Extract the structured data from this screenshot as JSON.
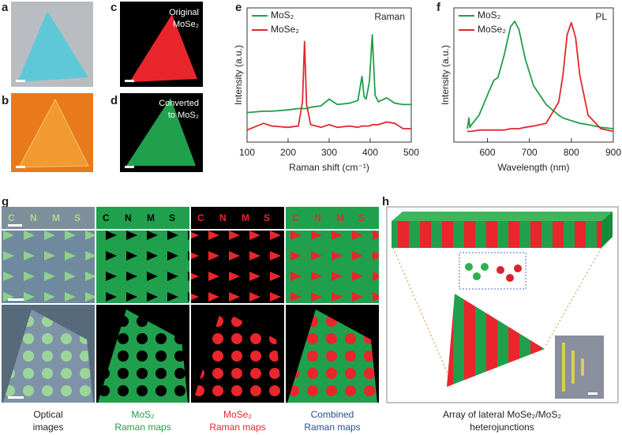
{
  "panel_labels": [
    "a",
    "b",
    "c",
    "d",
    "e",
    "f",
    "g",
    "h"
  ],
  "c_label": [
    "Original",
    "MoSe₂"
  ],
  "d_label": [
    "Converted",
    "to MoS₂"
  ],
  "g": {
    "letters": "CNMS",
    "columns": [
      [
        "Optical",
        "images"
      ],
      [
        "MoS₂",
        "Raman maps"
      ],
      [
        "MoSe₂",
        "Raman maps"
      ],
      [
        "Combined",
        "Raman maps"
      ]
    ]
  },
  "h": {
    "caption": [
      "Array of lateral MoSe₂/MoS₂",
      "heterojunctions"
    ]
  },
  "chart_data": [
    {
      "type": "line",
      "annotation": "Raman",
      "xlabel": "Raman shift (cm⁻¹)",
      "ylabel": "Intensity (a.u.)",
      "x": [
        100,
        140,
        160,
        200,
        225,
        235,
        240,
        245,
        255,
        280,
        300,
        320,
        350,
        370,
        380,
        385,
        390,
        398,
        405,
        412,
        420,
        440,
        460,
        480,
        500
      ],
      "xlim": [
        100,
        500
      ],
      "xticks": [
        100,
        200,
        300,
        400,
        500
      ],
      "ylim": [
        0,
        100
      ],
      "series": [
        {
          "name": "MoS₂",
          "color": "#1f9e47",
          "values": [
            22,
            23,
            23,
            24,
            25,
            25,
            25,
            25,
            26,
            27,
            32,
            28,
            29,
            31,
            49,
            34,
            32,
            45,
            80,
            35,
            30,
            33,
            29,
            28,
            28
          ]
        },
        {
          "name": "MoSe₂",
          "color": "#e0282e",
          "values": [
            9,
            14,
            12,
            11,
            12,
            30,
            75,
            28,
            13,
            11,
            13,
            11,
            12,
            11,
            12,
            12,
            12,
            12,
            13,
            13,
            13,
            15,
            14,
            10,
            10
          ]
        }
      ]
    },
    {
      "type": "line",
      "annotation": "PL",
      "xlabel": "Wavelength (nm)",
      "ylabel": "Intensity (a.u.)",
      "x": [
        552,
        556,
        558,
        562,
        580,
        600,
        615,
        625,
        640,
        655,
        665,
        675,
        690,
        710,
        740,
        770,
        780,
        790,
        800,
        810,
        820,
        840,
        870,
        900
      ],
      "xlim": [
        520,
        900
      ],
      "xticks": [
        600,
        700,
        800,
        900
      ],
      "ylim": [
        0,
        100
      ],
      "series": [
        {
          "name": "MoS₂",
          "color": "#1f9e47",
          "values": [
            10,
            18,
            11,
            13,
            20,
            35,
            46,
            48,
            65,
            86,
            90,
            84,
            62,
            42,
            28,
            20,
            18,
            17,
            16,
            15,
            14,
            13,
            11,
            10
          ]
        },
        {
          "name": "MoSe₂",
          "color": "#e0282e",
          "values": [
            8,
            8,
            8,
            8,
            9,
            9,
            9,
            9,
            9,
            10,
            10,
            10,
            11,
            12,
            14,
            30,
            50,
            80,
            89,
            78,
            50,
            20,
            10,
            8
          ]
        }
      ]
    }
  ]
}
